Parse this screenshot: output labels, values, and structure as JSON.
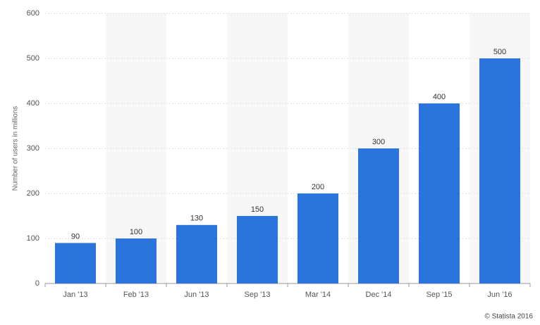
{
  "chart_data": {
    "type": "bar",
    "y_axis_label": "Number of users in millions",
    "credit": "© Statista 2016",
    "categories": [
      "Jan '13",
      "Feb '13",
      "Jun '13",
      "Sep '13",
      "Mar '14",
      "Dec '14",
      "Sep '15",
      "Jun '16"
    ],
    "values": [
      90,
      100,
      130,
      150,
      200,
      300,
      400,
      500
    ],
    "color": "#2a74db",
    "ylim": [
      0,
      600
    ],
    "yticks": [
      0,
      100,
      200,
      300,
      400,
      500,
      600
    ],
    "grid": true
  }
}
